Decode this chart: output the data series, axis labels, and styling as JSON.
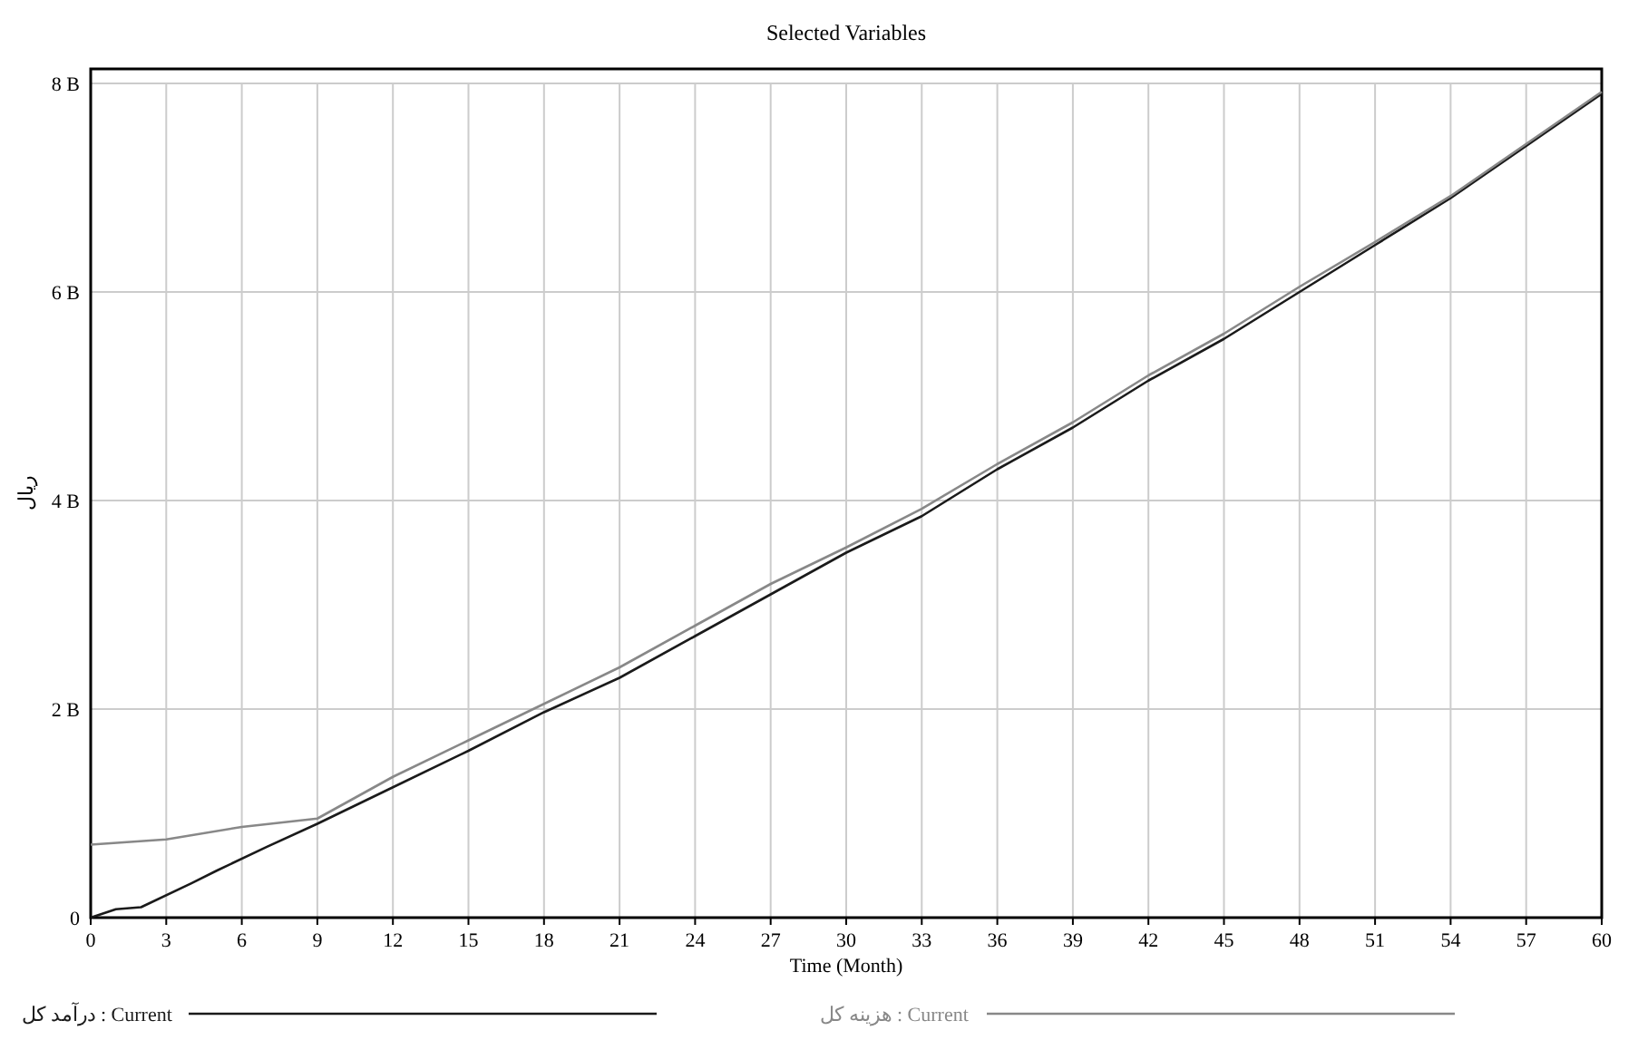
{
  "chart_data": {
    "type": "line",
    "title": "Selected Variables",
    "xlabel": "Time (Month)",
    "ylabel": "ریال",
    "xlim": [
      0,
      60
    ],
    "xticks": [
      0,
      3,
      6,
      9,
      12,
      15,
      18,
      21,
      24,
      27,
      30,
      33,
      36,
      39,
      42,
      45,
      48,
      51,
      54,
      57,
      60
    ],
    "ylim": [
      0,
      8
    ],
    "yticks": [
      0,
      {
        "value": 2,
        "label": "2 B"
      },
      {
        "value": 4,
        "label": "4 B"
      },
      {
        "value": 6,
        "label": "6 B"
      },
      {
        "value": 8,
        "label": "8 B"
      }
    ],
    "grid": true,
    "legend": "bottom",
    "marker": "none",
    "line_style": "solid",
    "series": [
      {
        "name": "درآمد کل : Current",
        "color": "#1a1a1a",
        "x": [
          0,
          1,
          2,
          4,
          5,
          7,
          9,
          12,
          15,
          18,
          21,
          24,
          27,
          30,
          33,
          36,
          39,
          42,
          45,
          48,
          51,
          54,
          57,
          60
        ],
        "values": [
          0,
          0.08,
          0.1,
          0.33,
          0.45,
          0.68,
          0.9,
          1.25,
          1.6,
          1.97,
          2.3,
          2.7,
          3.1,
          3.5,
          3.85,
          4.3,
          4.7,
          5.15,
          5.55,
          6.0,
          6.45,
          6.9,
          7.4,
          7.9
        ]
      },
      {
        "name": "هزینه کل : Current",
        "color": "#888888",
        "x": [
          0,
          3,
          6,
          9,
          12,
          15,
          18,
          21,
          24,
          27,
          30,
          33,
          36,
          39,
          42,
          45,
          48,
          51,
          54,
          57,
          60
        ],
        "values": [
          0.7,
          0.75,
          0.87,
          0.95,
          1.35,
          1.7,
          2.05,
          2.4,
          2.8,
          3.2,
          3.55,
          3.92,
          4.35,
          4.75,
          5.2,
          5.6,
          6.05,
          6.48,
          6.92,
          7.42,
          7.92
        ]
      }
    ]
  }
}
